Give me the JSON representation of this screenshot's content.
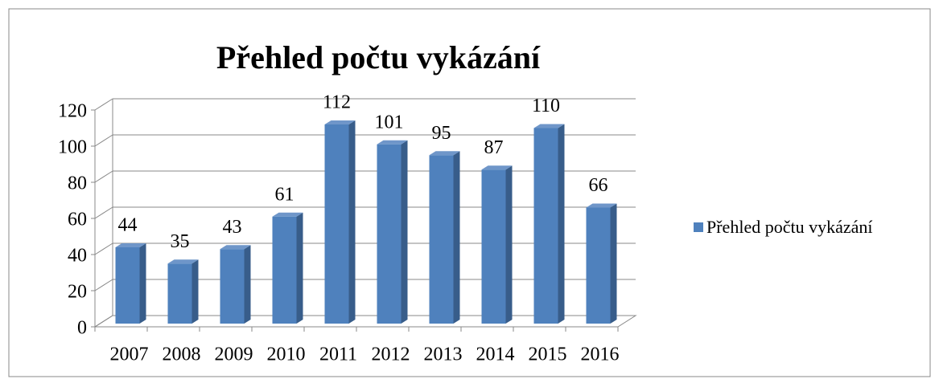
{
  "chart_data": {
    "type": "bar3d",
    "title": "Přehled počtu vykázání",
    "categories": [
      "2007",
      "2008",
      "2009",
      "2010",
      "2011",
      "2012",
      "2013",
      "2014",
      "2015",
      "2016"
    ],
    "series": [
      {
        "name": "Přehled počtu vykázání",
        "color": "#4f81bd",
        "values": [
          44,
          35,
          43,
          61,
          112,
          101,
          95,
          87,
          110,
          66
        ]
      }
    ],
    "ylim": [
      0,
      120
    ],
    "yticks": [
      0,
      20,
      40,
      60,
      80,
      100,
      120
    ],
    "grid": true,
    "legend": "right"
  }
}
